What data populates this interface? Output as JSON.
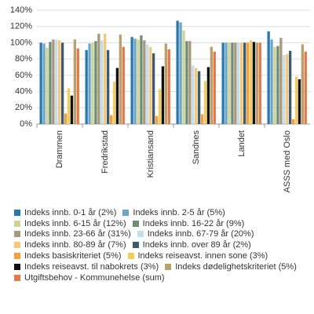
{
  "chart_data": {
    "type": "bar",
    "categories": [
      "Drammen",
      "Fredrikstad",
      "Kristiansand",
      "Sandnes",
      "Landet",
      "ASSS med Oslo"
    ],
    "ylim": [
      0,
      140
    ],
    "yticks": [
      {
        "value": 0,
        "label": "0%"
      },
      {
        "value": 20,
        "label": "20%"
      },
      {
        "value": 40,
        "label": "40%"
      },
      {
        "value": 60,
        "label": "60%"
      },
      {
        "value": 80,
        "label": "80%"
      },
      {
        "value": 100,
        "label": "100%"
      },
      {
        "value": 120,
        "label": "120%"
      },
      {
        "value": 140,
        "label": "140%"
      }
    ],
    "grid": true,
    "series": [
      {
        "name": "Indeks innb. 0-1 år (2%)",
        "color": "#2c78a8",
        "values": [
          100,
          91,
          107,
          127,
          100,
          114
        ]
      },
      {
        "name": "Indeks innb. 2-5 år (5%)",
        "color": "#6ba7c9",
        "values": [
          99,
          99,
          105,
          125,
          100,
          104
        ]
      },
      {
        "name": "Indeks innb. 6-15 år (12%)",
        "color": "#cdd497",
        "values": [
          94,
          100,
          104,
          115,
          100,
          95
        ]
      },
      {
        "name": "Indeks innb. 16-22 år (9%)",
        "color": "#6e8c76",
        "values": [
          101,
          102,
          109,
          102,
          100,
          96
        ]
      },
      {
        "name": "Indeks innb. 23-66 år (31%)",
        "color": "#a8997e",
        "values": [
          104,
          111,
          103,
          102,
          100,
          106
        ]
      },
      {
        "name": "Indeks innb. 67-79 år (20%)",
        "color": "#c6dce8",
        "values": [
          104,
          103,
          98,
          72,
          100,
          85
        ]
      },
      {
        "name": "Indeks innb. 80-89 år (7%)",
        "color": "#f4c77c",
        "values": [
          103,
          111,
          95,
          69,
          100,
          86
        ]
      },
      {
        "name": "Indeks innb. over 89 år (2%)",
        "color": "#3e5b6d",
        "values": [
          100,
          91,
          87,
          65,
          100,
          90
        ]
      },
      {
        "name": "Indeks basiskriteriet (5%)",
        "color": "#f0a040",
        "values": [
          13,
          11,
          10,
          12,
          100,
          6
        ]
      },
      {
        "name": "Indeks reiseavst. innen sone (3%)",
        "color": "#f3cd5c",
        "values": [
          44,
          52,
          43,
          53,
          103,
          58
        ]
      },
      {
        "name": "Indeks reiseavst. til nabokrets (3%)",
        "color": "#111111",
        "values": [
          35,
          69,
          71,
          70,
          101,
          55
        ]
      },
      {
        "name": "Indeks dødelighetskriteriet (5%)",
        "color": "#b9a06c",
        "values": [
          104,
          110,
          99,
          95,
          100,
          98
        ]
      },
      {
        "name": "Utgiftsbehov - Kommunehelse (sum)",
        "color": "#e07a48",
        "values": [
          93,
          95,
          92,
          89,
          100,
          89
        ]
      }
    ]
  }
}
